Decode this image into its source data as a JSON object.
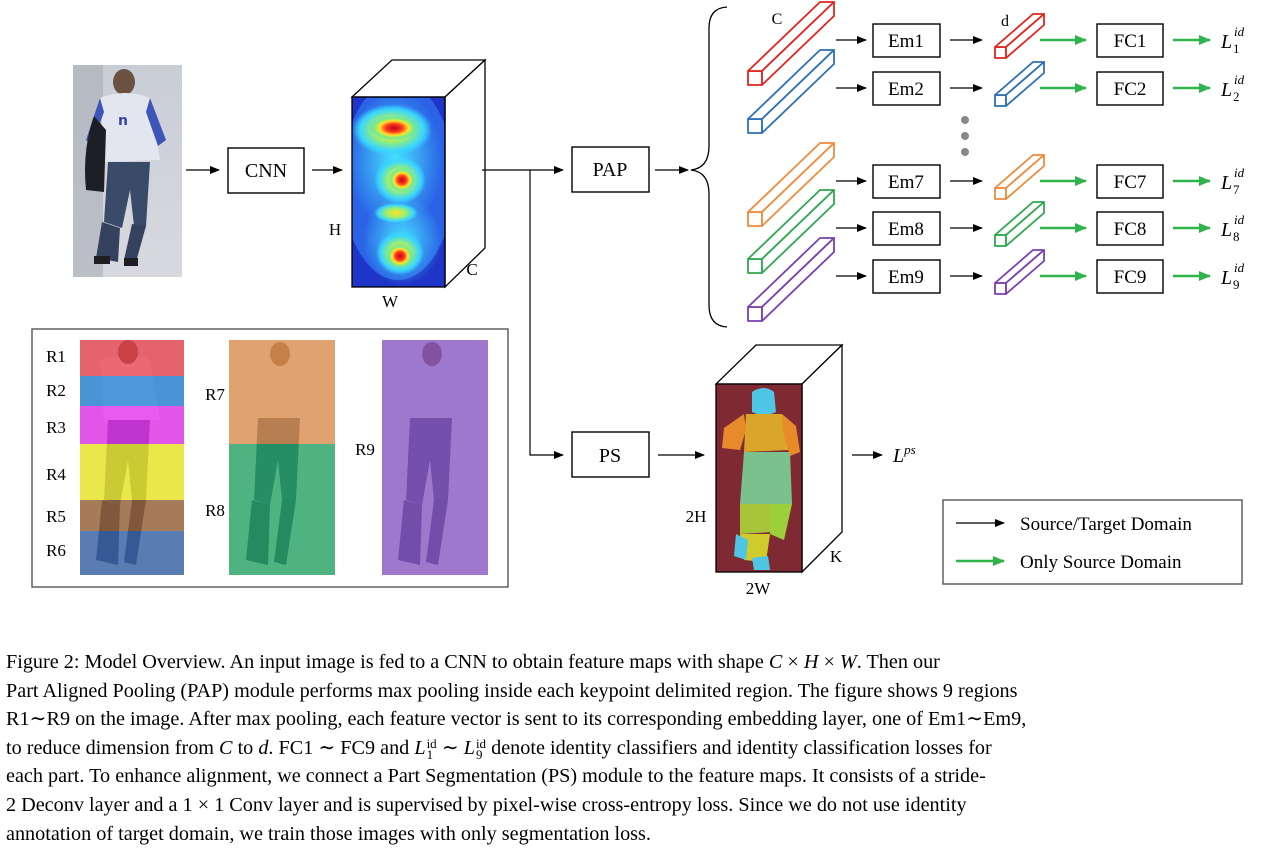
{
  "diagram": {
    "cnn_label": "CNN",
    "pap_label": "PAP",
    "ps_label": "PS",
    "feature_map": {
      "h": "H",
      "w": "W",
      "c": "C"
    },
    "seg_map": {
      "h": "2H",
      "w": "2W",
      "k": "K"
    },
    "vector_c_label": "C",
    "vector_d_label": "d",
    "branches": [
      {
        "em": "Em1",
        "fc": "FC1",
        "sub": "1",
        "color": "#e0261f"
      },
      {
        "em": "Em2",
        "fc": "FC2",
        "sub": "2",
        "color": "#2e6fb5"
      },
      {
        "em": "Em7",
        "fc": "FC7",
        "sub": "7",
        "color": "#f08b3c"
      },
      {
        "em": "Em8",
        "fc": "FC8",
        "sub": "8",
        "color": "#2fa84f"
      },
      {
        "em": "Em9",
        "fc": "FC9",
        "sub": "9",
        "color": "#7a3fb0"
      }
    ],
    "loss_main": "L",
    "loss_sup": "id",
    "ps_loss_main": "L",
    "ps_loss_sup": "ps",
    "regions": [
      "R1",
      "R2",
      "R3",
      "R4",
      "R5",
      "R6",
      "R7",
      "R8",
      "R9"
    ],
    "legend": {
      "source_target": "Source/Target Domain",
      "source_only": "Only Source Domain"
    },
    "colors": {
      "green_arrow": "#2fb34a",
      "seg_bg": "#7f2a33"
    }
  },
  "caption": {
    "line1": [
      "Figure 2: Model Overview.  An input image is fed to a CNN to obtain feature maps with shape ",
      "C",
      " × ",
      "H",
      " × ",
      "W",
      ".  Then our"
    ],
    "line2": "Part Aligned Pooling (PAP) module performs max pooling inside each keypoint delimited region. The figure shows 9 regions",
    "line3": "R1∼R9 on the image. After max pooling, each feature vector is sent to its corresponding embedding layer, one of Em1∼Em9,",
    "line4": [
      "to reduce dimension from ",
      "C",
      " to ",
      "d",
      ". FC1 ∼ FC9 and ",
      "L",
      "id",
      "1",
      " ∼ ",
      "L",
      "id",
      "9",
      " denote identity classifiers and identity classification losses for"
    ],
    "line5": "each part.  To enhance alignment, we connect a Part Segmentation (PS) module to the feature maps.  It consists of a stride-",
    "line6": "2 Deconv layer and a 1 × 1 Conv layer and is supervised by pixel-wise cross-entropy loss.  Since we do not use identity",
    "line7": "annotation of target domain, we train those images with only segmentation loss."
  }
}
